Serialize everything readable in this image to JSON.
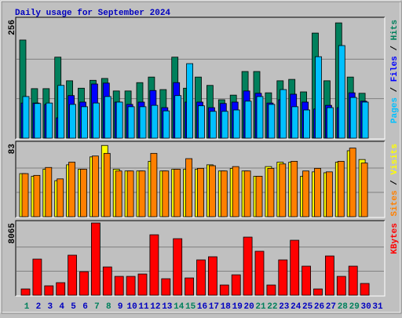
{
  "title": "Daily usage for September 2024",
  "chart_data": [
    {
      "type": "bar",
      "ylim": [
        0,
        256
      ],
      "yticks": [
        256
      ],
      "series": [
        {
          "name": "Hits",
          "color": "#00805c",
          "values": [
            212,
            107,
            107,
            175,
            124,
            108,
            125,
            129,
            102,
            102,
            120,
            132,
            105,
            175,
            108,
            132,
            114,
            83,
            93,
            144,
            144,
            98,
            124,
            127,
            100,
            227,
            124,
            249,
            132,
            97,
            null
          ]
        },
        {
          "name": "Files",
          "color": "#0000ff",
          "values": [
            76,
            76,
            73,
            44,
            92,
            78,
            117,
            119,
            78,
            73,
            78,
            103,
            66,
            120,
            78,
            78,
            66,
            75,
            78,
            102,
            97,
            76,
            83,
            95,
            78,
            63,
            71,
            66,
            98,
            80,
            null
          ]
        },
        {
          "name": "Pages",
          "color": "#00c0ff",
          "values": [
            90,
            75,
            76,
            114,
            73,
            68,
            76,
            90,
            78,
            68,
            68,
            71,
            59,
            92,
            161,
            70,
            58,
            58,
            61,
            80,
            90,
            73,
            105,
            68,
            61,
            176,
            66,
            200,
            88,
            78,
            null
          ]
        }
      ]
    },
    {
      "type": "bar",
      "ylim": [
        0,
        83
      ],
      "yticks": [
        83
      ],
      "series": [
        {
          "name": "Visits",
          "color": "#ffff00",
          "values": [
            49,
            46,
            54,
            41,
            59,
            54,
            68,
            81,
            54,
            52,
            52,
            63,
            52,
            54,
            54,
            54,
            59,
            52,
            55,
            52,
            46,
            57,
            62,
            62,
            46,
            51,
            50,
            62,
            75,
            65,
            null
          ]
        },
        {
          "name": "Sites",
          "color": "#ff8000",
          "values": [
            49,
            47,
            56,
            43,
            62,
            54,
            69,
            72,
            52,
            52,
            52,
            72,
            52,
            54,
            66,
            55,
            58,
            52,
            57,
            52,
            46,
            55,
            60,
            63,
            52,
            55,
            51,
            63,
            78,
            61,
            null
          ]
        }
      ]
    },
    {
      "type": "bar",
      "ylim": [
        0,
        8065
      ],
      "yticks": [
        8065
      ],
      "categories": [
        "1",
        "2",
        "3",
        "4",
        "5",
        "6",
        "7",
        "8",
        "9",
        "10",
        "11",
        "12",
        "13",
        "14",
        "15",
        "16",
        "17",
        "18",
        "19",
        "20",
        "21",
        "22",
        "23",
        "24",
        "25",
        "26",
        "27",
        "28",
        "29",
        "30",
        "31"
      ],
      "category_colors": [
        "#00805c",
        "#0000c0",
        "#0000c0",
        "#0000c0",
        "#0000c0",
        "#0000c0",
        "#00805c",
        "#00805c",
        "#0000c0",
        "#0000c0",
        "#0000c0",
        "#0000c0",
        "#0000c0",
        "#00805c",
        "#00805c",
        "#0000c0",
        "#0000c0",
        "#0000c0",
        "#0000c0",
        "#0000c0",
        "#00805c",
        "#00805c",
        "#0000c0",
        "#0000c0",
        "#0000c0",
        "#0000c0",
        "#0000c0",
        "#00805c",
        "#00805c",
        "#0000c0",
        "#0000c0"
      ],
      "series": [
        {
          "name": "KBytes",
          "color": "#ff0000",
          "values": [
            701,
            4033,
            1052,
            1403,
            4471,
            2630,
            8065,
            3156,
            2104,
            2104,
            2367,
            6750,
            1841,
            6312,
            1929,
            3945,
            4296,
            1140,
            2279,
            6487,
            4909,
            1140,
            3945,
            6137,
            3244,
            701,
            4383,
            2104,
            3244,
            1315,
            null
          ]
        }
      ]
    }
  ]
}
